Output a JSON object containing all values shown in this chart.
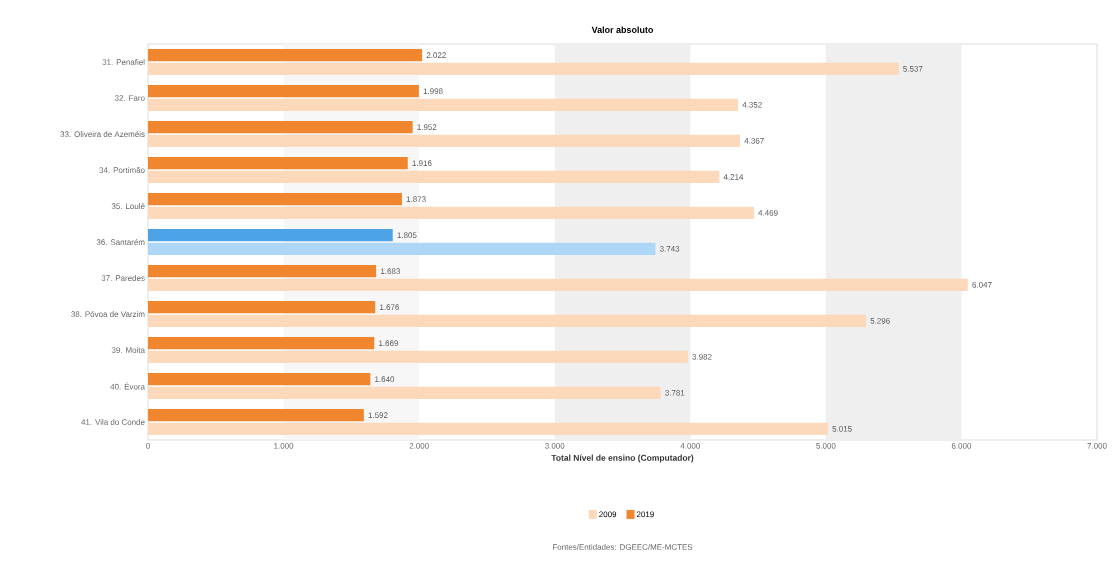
{
  "chart_data": {
    "type": "bar",
    "orientation": "horizontal",
    "title": "Valor absoluto",
    "xlabel": "Total Nível de ensino (Computador)",
    "categories": [
      "31. Penafiel",
      "32. Faro",
      "33. Oliveira de Azeméis",
      "34. Portimão",
      "35. Loulé",
      "36. Santarém",
      "37. Paredes",
      "38. Póvoa de Varzim",
      "39. Moita",
      "40. Évora",
      "41. Vila do Conde"
    ],
    "series": [
      {
        "name": "2009",
        "color": "#fcd9bb",
        "colors": [
          "#fcd9bb",
          "#fcd9bb",
          "#fcd9bb",
          "#fcd9bb",
          "#fcd9bb",
          "#aed6f7",
          "#fcd9bb",
          "#fcd9bb",
          "#fcd9bb",
          "#fcd9bb",
          "#fcd9bb"
        ],
        "values": [
          5537,
          4352,
          4367,
          4214,
          4469,
          3743,
          6047,
          5296,
          3982,
          3781,
          5015
        ],
        "value_labels": [
          "5.537",
          "4.352",
          "4.367",
          "4.214",
          "4.469",
          "3.743",
          "6.047",
          "5.296",
          "3.982",
          "3.781",
          "5.015"
        ]
      },
      {
        "name": "2019",
        "color": "#f0862e",
        "colors": [
          "#f0862e",
          "#f0862e",
          "#f0862e",
          "#f0862e",
          "#f0862e",
          "#4da3e8",
          "#f0862e",
          "#f0862e",
          "#f0862e",
          "#f0862e",
          "#f0862e"
        ],
        "values": [
          2022,
          1998,
          1952,
          1916,
          1873,
          1805,
          1683,
          1676,
          1669,
          1640,
          1592
        ],
        "value_labels": [
          "2.022",
          "1.998",
          "1.952",
          "1.916",
          "1.873",
          "1.805",
          "1.683",
          "1.676",
          "1.669",
          "1.640",
          "1.592"
        ]
      }
    ],
    "xlim": [
      0,
      7000
    ],
    "xticks": [
      0,
      {
        "value": 1000,
        "label": "1.000"
      },
      {
        "value": 2000,
        "label": "2.000"
      },
      {
        "value": 3000,
        "label": "3.000"
      },
      {
        "value": 4000,
        "label": "4.000"
      },
      {
        "value": 5000,
        "label": "5.000"
      },
      {
        "value": 6000,
        "label": "6.000"
      },
      {
        "value": 7000,
        "label": "7.000"
      }
    ],
    "bands": [
      {
        "axis": "x",
        "from": 1000,
        "to": 2000,
        "color": "#f7f7f7"
      },
      {
        "axis": "x",
        "from": 3000,
        "to": 4000,
        "color": "#efefef"
      },
      {
        "axis": "x",
        "from": 5000,
        "to": 6000,
        "color": "#efefef"
      }
    ],
    "legend": "bottom",
    "annotations": [
      "Fontes/Entidades: DGEEC/ME-MCTES"
    ]
  }
}
